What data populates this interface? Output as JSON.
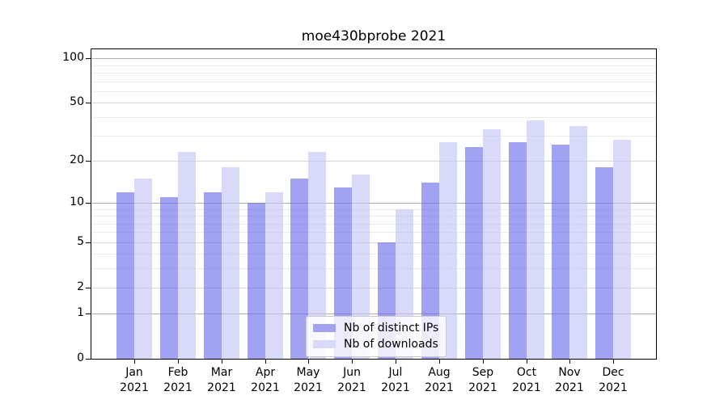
{
  "title": "moe430bprobe 2021",
  "chart_data": {
    "type": "bar",
    "title": "moe430bprobe 2021",
    "categories": [
      "Jan 2021",
      "Feb 2021",
      "Mar 2021",
      "Apr 2021",
      "May 2021",
      "Jun 2021",
      "Jul 2021",
      "Aug 2021",
      "Sep 2021",
      "Oct 2021",
      "Nov 2021",
      "Dec 2021"
    ],
    "series": [
      {
        "name": "Nb of distinct IPs",
        "legend_color": "#a2a2f0",
        "fill": "rgba(105,105,235,0.62)",
        "values": [
          12,
          11,
          12,
          10,
          15,
          13,
          5,
          14,
          25,
          27,
          26,
          18
        ]
      },
      {
        "name": "Nb of downloads",
        "legend_color": "#d9d9fa",
        "fill": "rgba(194,194,247,0.62)",
        "values": [
          15,
          23,
          18,
          12,
          23,
          16,
          9,
          27,
          33,
          38,
          35,
          28
        ]
      }
    ],
    "xlabel": "",
    "ylabel": "",
    "yscale": "log1p",
    "y_ticks": [
      0,
      1,
      2,
      5,
      10,
      20,
      50,
      100
    ],
    "y_minor_ticks": [
      3,
      4,
      6,
      7,
      8,
      9,
      30,
      40,
      60,
      70,
      80,
      90
    ],
    "ylim": [
      0,
      115
    ],
    "grid": "horizontal",
    "legend_position": "lower center"
  },
  "colors": {
    "major_gridline": "#adadad",
    "mid_gridline": "#d8d8d8",
    "minor_gridline": "#ececec",
    "axis": "#000000",
    "background": "#ffffff"
  }
}
